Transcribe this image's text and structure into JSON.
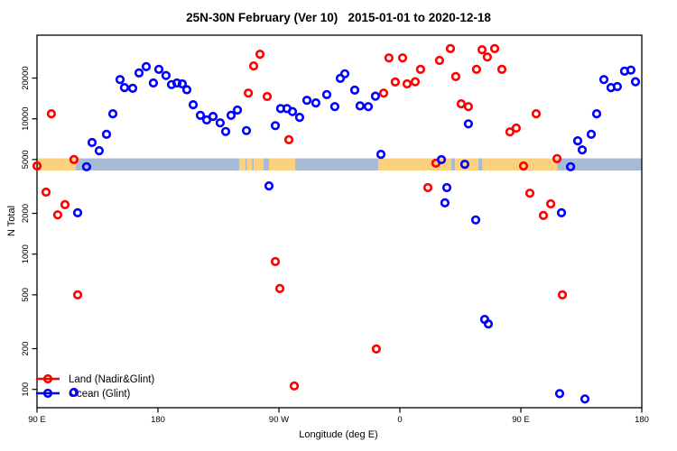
{
  "chart_data": {
    "type": "scatter",
    "title": "25N-30N February (Ver 10)   2015-01-01 to 2020-12-18",
    "xlabel": "Longitude (deg E)",
    "ylabel": "N Total",
    "grid": false,
    "legend_position": "bottom-left",
    "x_axis": {
      "min": 90,
      "max": 540,
      "tick_values": [
        90,
        180,
        270,
        360,
        450,
        540
      ],
      "tick_labels": [
        "90 E",
        "180",
        "90 W",
        "0",
        "90 E",
        "180"
      ]
    },
    "y_axis": {
      "scale": "log",
      "min": 73,
      "max": 41500,
      "tick_values": [
        100,
        200,
        500,
        1000,
        2000,
        5000,
        10000,
        20000
      ],
      "tick_labels": [
        "100",
        "200",
        "500",
        "1000",
        "2000",
        "5000",
        "10000",
        "20000"
      ]
    },
    "series": [
      {
        "name": "Land (Nadir&Glint)",
        "color": "#FF0000",
        "points": [
          [
            90.0,
            4480
          ],
          [
            100.7,
            10900
          ],
          [
            117.5,
            5000
          ],
          [
            96.7,
            2870
          ],
          [
            110.8,
            2320
          ],
          [
            105.4,
            1950
          ],
          [
            120.2,
            500
          ],
          [
            255.9,
            30000
          ],
          [
            251.2,
            24600
          ],
          [
            247.2,
            15500
          ],
          [
            261.3,
            14600
          ],
          [
            277.4,
            7000
          ],
          [
            347.9,
            15500
          ],
          [
            351.9,
            28200
          ],
          [
            362.0,
            28200
          ],
          [
            356.6,
            18700
          ],
          [
            365.4,
            18100
          ],
          [
            371.4,
            18800
          ],
          [
            375.4,
            23200
          ],
          [
            389.5,
            27000
          ],
          [
            380.8,
            3100
          ],
          [
            267.3,
            880
          ],
          [
            270.7,
            556
          ],
          [
            342.5,
            199
          ],
          [
            281.4,
            106
          ],
          [
            397.6,
            33000
          ],
          [
            421.1,
            32400
          ],
          [
            430.5,
            33000
          ],
          [
            425.1,
            28600
          ],
          [
            417.0,
            23200
          ],
          [
            435.9,
            23200
          ],
          [
            401.6,
            20500
          ],
          [
            405.6,
            12900
          ],
          [
            411.0,
            12300
          ],
          [
            461.4,
            10900
          ],
          [
            446.6,
            8540
          ],
          [
            441.9,
            8000
          ],
          [
            476.9,
            5070
          ],
          [
            452.0,
            4480
          ],
          [
            386.8,
            4700
          ],
          [
            456.7,
            2820
          ],
          [
            472.2,
            2350
          ],
          [
            466.8,
            1930
          ],
          [
            480.9,
            500
          ]
        ]
      },
      {
        "name": "Ocean (Glint)",
        "color": "#0000FF",
        "points": [
          [
            126.9,
            4420
          ],
          [
            120.2,
            2020
          ],
          [
            131.0,
            6680
          ],
          [
            136.3,
            5810
          ],
          [
            141.7,
            7680
          ],
          [
            146.4,
            10900
          ],
          [
            151.8,
            19500
          ],
          [
            155.1,
            17000
          ],
          [
            161.2,
            16800
          ],
          [
            165.9,
            21800
          ],
          [
            171.3,
            24300
          ],
          [
            176.6,
            18400
          ],
          [
            180.7,
            23200
          ],
          [
            186.0,
            20900
          ],
          [
            190.1,
            17900
          ],
          [
            194.1,
            18400
          ],
          [
            198.1,
            18100
          ],
          [
            201.5,
            16400
          ],
          [
            206.2,
            12700
          ],
          [
            211.6,
            10600
          ],
          [
            216.3,
            9800
          ],
          [
            221.0,
            10400
          ],
          [
            226.3,
            9330
          ],
          [
            230.4,
            8050
          ],
          [
            234.4,
            10600
          ],
          [
            239.1,
            11600
          ],
          [
            245.8,
            8180
          ],
          [
            262.6,
            3190
          ],
          [
            267.3,
            8900
          ],
          [
            271.3,
            11900
          ],
          [
            276.0,
            11900
          ],
          [
            280.1,
            11300
          ],
          [
            285.4,
            10250
          ],
          [
            290.8,
            13700
          ],
          [
            297.5,
            13100
          ],
          [
            305.6,
            15100
          ],
          [
            311.6,
            12300
          ],
          [
            315.7,
            19900
          ],
          [
            319.0,
            21500
          ],
          [
            326.4,
            16300
          ],
          [
            330.4,
            12450
          ],
          [
            336.5,
            12300
          ],
          [
            341.8,
            14700
          ],
          [
            345.9,
            5460
          ],
          [
            390.9,
            4990
          ],
          [
            393.5,
            2390
          ],
          [
            394.9,
            3100
          ],
          [
            408.3,
            4610
          ],
          [
            411.0,
            9180
          ],
          [
            416.4,
            1790
          ],
          [
            423.1,
            329
          ],
          [
            425.8,
            305
          ],
          [
            487.0,
            4420
          ],
          [
            492.3,
            6880
          ],
          [
            495.7,
            5890
          ],
          [
            502.4,
            7680
          ],
          [
            506.4,
            10900
          ],
          [
            511.8,
            19500
          ],
          [
            517.1,
            17000
          ],
          [
            521.8,
            17300
          ],
          [
            527.2,
            22500
          ],
          [
            531.9,
            22900
          ],
          [
            535.3,
            18800
          ],
          [
            480.2,
            2020
          ],
          [
            478.9,
            93
          ],
          [
            117.5,
            95
          ],
          [
            497.7,
            85
          ]
        ]
      }
    ],
    "land_ocean_band": {
      "n_top": 5100,
      "n_bottom": 4150,
      "land_color": "#FCD17E",
      "ocean_color": "#A8BAD6",
      "segments": [
        {
          "from": 90.0,
          "to": 118.9,
          "surface": "land"
        },
        {
          "from": 118.9,
          "to": 240.4,
          "surface": "ocean"
        },
        {
          "from": 240.4,
          "to": 245.0,
          "surface": "land"
        },
        {
          "from": 245.0,
          "to": 246.3,
          "surface": "ocean"
        },
        {
          "from": 246.3,
          "to": 250.0,
          "surface": "land"
        },
        {
          "from": 250.0,
          "to": 251.3,
          "surface": "ocean"
        },
        {
          "from": 251.3,
          "to": 258.6,
          "surface": "land"
        },
        {
          "from": 258.6,
          "to": 262.6,
          "surface": "ocean"
        },
        {
          "from": 262.6,
          "to": 282.1,
          "surface": "land"
        },
        {
          "from": 282.1,
          "to": 343.9,
          "surface": "ocean"
        },
        {
          "from": 343.9,
          "to": 398.3,
          "surface": "land"
        },
        {
          "from": 398.3,
          "to": 401.0,
          "surface": "ocean"
        },
        {
          "from": 401.0,
          "to": 418.4,
          "surface": "land"
        },
        {
          "from": 418.4,
          "to": 421.4,
          "surface": "ocean"
        },
        {
          "from": 421.4,
          "to": 477.0,
          "surface": "land"
        },
        {
          "from": 477.0,
          "to": 540.0,
          "surface": "ocean"
        }
      ]
    }
  }
}
